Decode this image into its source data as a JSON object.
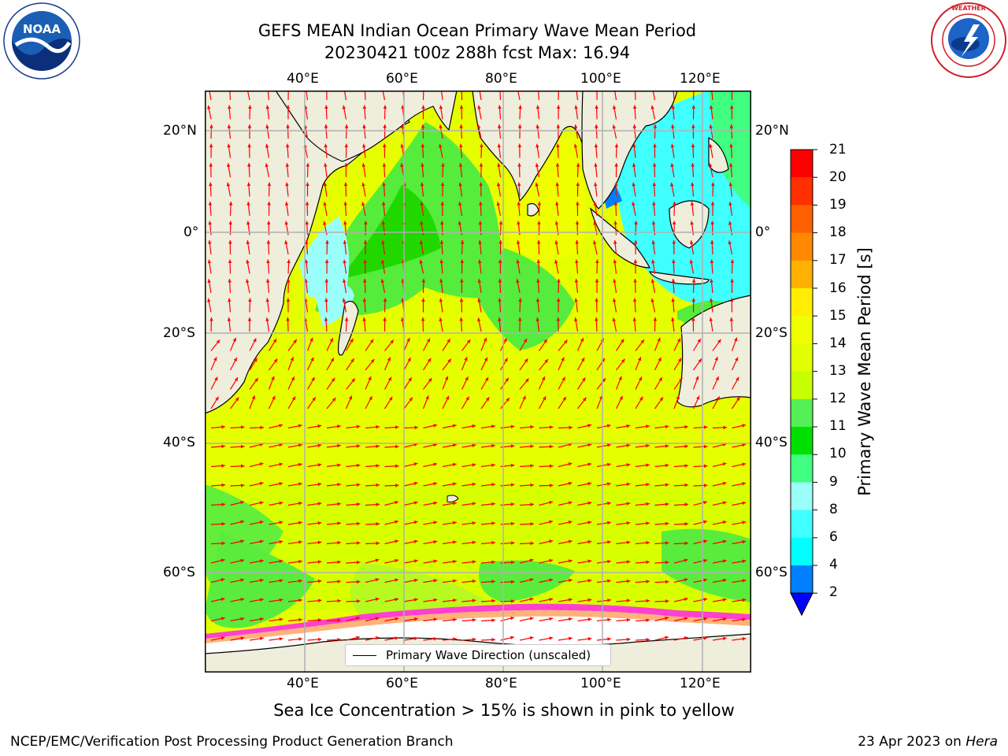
{
  "header": {
    "title_line1": "GEFS MEAN Indian Ocean Primary Wave Mean Period",
    "title_line2": "20230421 t00z 288h fcst   Max: 16.94"
  },
  "logos": {
    "left": "NOAA",
    "left_ring_text": "NATIONAL OCEANIC AND ATMOSPHERIC ADMINISTRATION · U.S. DEPARTMENT OF COMMERCE",
    "right_ring_text": "NATIONAL WEATHER SERVICE"
  },
  "map": {
    "lon_ticks_top": [
      "40°E",
      "60°E",
      "80°E",
      "100°E",
      "120°E"
    ],
    "lon_ticks_bottom": [
      "40°E",
      "60°E",
      "80°E",
      "100°E",
      "120°E"
    ],
    "lat_ticks_left": [
      "20°N",
      "0°",
      "20°S",
      "40°S",
      "60°S"
    ],
    "lat_ticks_right": [
      "20°N",
      "0°",
      "20°S",
      "40°S",
      "60°S"
    ],
    "colors": {
      "land": "#efeddc",
      "arrow": "#ff0000",
      "grid": "#b0b0b0",
      "ice_white": "#ffffff"
    },
    "legend_label": "Primary Wave Direction (unscaled)"
  },
  "colorbar": {
    "title": "Primary Wave Mean Period [s]",
    "tick_labels": [
      "21",
      "20",
      "19",
      "18",
      "17",
      "16",
      "15",
      "14",
      "13",
      "12",
      "11",
      "10",
      "9",
      "8",
      "6",
      "4",
      "2"
    ],
    "bins": [
      {
        "color": "#0000ff",
        "label": "under"
      },
      {
        "color": "#0080ff"
      },
      {
        "color": "#00ffff"
      },
      {
        "color": "#40ffff"
      },
      {
        "color": "#9bfff9"
      },
      {
        "color": "#40ff80"
      },
      {
        "color": "#00e000"
      },
      {
        "color": "#55f055"
      },
      {
        "color": "#c8ff00"
      },
      {
        "color": "#e2ff00"
      },
      {
        "color": "#f0ff00"
      },
      {
        "color": "#ffee00"
      },
      {
        "color": "#ffb000"
      },
      {
        "color": "#ff8800"
      },
      {
        "color": "#ff6000"
      },
      {
        "color": "#ff3000"
      },
      {
        "color": "#ff0000"
      }
    ]
  },
  "caption": "Sea Ice Concentration > 15% is shown in pink to yellow",
  "footer": {
    "left": "NCEP/EMC/Verification Post Processing Product Generation Branch",
    "right_date": "23 Apr 2023 on ",
    "right_host": "Hera"
  }
}
